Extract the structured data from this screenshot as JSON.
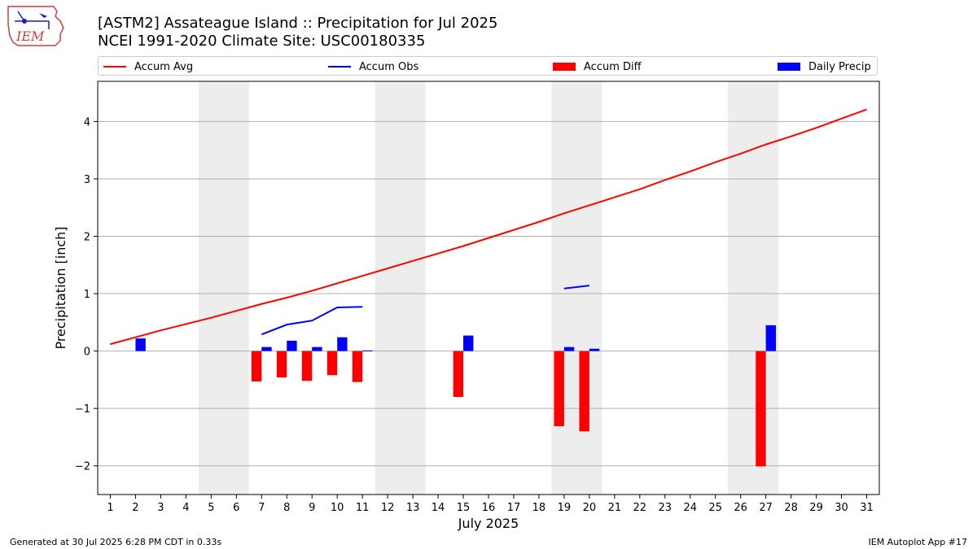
{
  "header": {
    "title_line1": "[ASTM2] Assateague Island :: Precipitation for Jul 2025",
    "title_line2": "NCEI 1991-2020 Climate Site: USC00180335"
  },
  "logo": {
    "text": "IEM"
  },
  "legend": {
    "accum_avg": "Accum Avg",
    "accum_obs": "Accum Obs",
    "accum_diff": "Accum Diff",
    "daily_precip": "Daily Precip"
  },
  "footer": {
    "generated": "Generated at 30 Jul 2025 6:28 PM CDT in 0.33s",
    "app": "IEM Autoplot App #17"
  },
  "colors": {
    "avg": "#ff0000",
    "obs": "#0000ff",
    "diff": "#ff0000",
    "daily": "#0000ff",
    "weekend_shade": "#ededed",
    "grid": "#b0b0b0"
  },
  "chart_data": {
    "type": "bar",
    "title": "[ASTM2] Assateague Island :: Precipitation for Jul 2025",
    "xlabel": "July 2025",
    "ylabel": "Precipitation [inch]",
    "xlim": [
      0.5,
      31.5
    ],
    "ylim": [
      -2.5,
      4.7
    ],
    "yticks": [
      -2,
      -1,
      0,
      1,
      2,
      3,
      4
    ],
    "yticklabels": [
      "−2",
      "−1",
      "0",
      "1",
      "2",
      "3",
      "4"
    ],
    "days": [
      1,
      2,
      3,
      4,
      5,
      6,
      7,
      8,
      9,
      10,
      11,
      12,
      13,
      14,
      15,
      16,
      17,
      18,
      19,
      20,
      21,
      22,
      23,
      24,
      25,
      26,
      27,
      28,
      29,
      30,
      31
    ],
    "weekend_spans": [
      [
        4.5,
        6.5
      ],
      [
        11.5,
        13.5
      ],
      [
        18.5,
        20.5
      ],
      [
        25.5,
        27.5
      ]
    ],
    "grid": true,
    "legend_position": "top",
    "series": [
      {
        "name": "Accum Avg",
        "kind": "line",
        "x": [
          1,
          2,
          3,
          4,
          5,
          6,
          7,
          8,
          9,
          10,
          11,
          12,
          13,
          14,
          15,
          16,
          17,
          18,
          19,
          20,
          21,
          22,
          23,
          24,
          25,
          26,
          27,
          28,
          29,
          30,
          31
        ],
        "values": [
          0.12,
          0.24,
          0.36,
          0.47,
          0.58,
          0.7,
          0.82,
          0.93,
          1.05,
          1.18,
          1.31,
          1.44,
          1.57,
          1.7,
          1.83,
          1.97,
          2.11,
          2.25,
          2.4,
          2.54,
          2.68,
          2.82,
          2.98,
          3.13,
          3.29,
          3.44,
          3.6,
          3.74,
          3.89,
          4.05,
          4.21
        ]
      },
      {
        "name": "Accum Obs",
        "kind": "line",
        "segments": [
          {
            "x": [
              7,
              8,
              9,
              10,
              11
            ],
            "values": [
              0.29,
              0.46,
              0.53,
              0.76,
              0.77
            ]
          },
          {
            "x": [
              19,
              20
            ],
            "values": [
              1.09,
              1.14
            ]
          }
        ]
      },
      {
        "name": "Accum Diff",
        "kind": "bar",
        "x": [
          7,
          8,
          9,
          10,
          11,
          15,
          19,
          20,
          27
        ],
        "values": [
          -0.53,
          -0.46,
          -0.52,
          -0.42,
          -0.54,
          -0.8,
          -1.31,
          -1.4,
          -2.01
        ]
      },
      {
        "name": "Daily Precip",
        "kind": "bar",
        "x": [
          2,
          7,
          8,
          9,
          10,
          11,
          15,
          19,
          20,
          27
        ],
        "values": [
          0.22,
          0.07,
          0.18,
          0.07,
          0.24,
          0.01,
          0.27,
          0.07,
          0.04,
          0.45
        ]
      }
    ]
  }
}
